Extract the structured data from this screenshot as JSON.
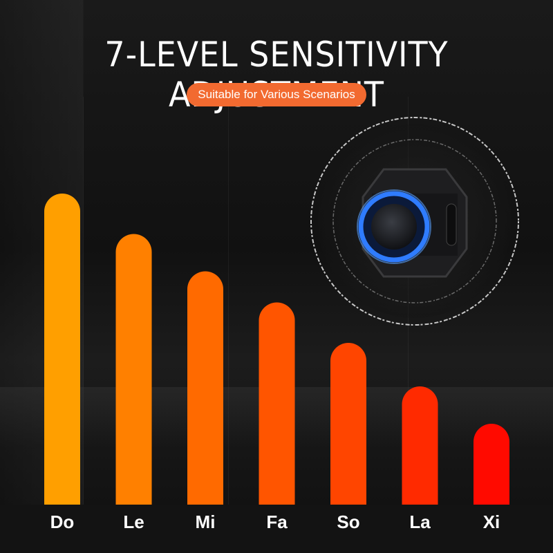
{
  "header": {
    "title": "7-LEVEL SENSITIVITY ADJUSTMENT",
    "subtitle": "Suitable for Various Scenarios"
  },
  "colors": {
    "accent": "#f26a30",
    "bars": [
      "#ff9f00",
      "#ff8000",
      "#ff6a00",
      "#ff5500",
      "#ff4500",
      "#ff2a00",
      "#ff0a00"
    ]
  },
  "device": {
    "icon": "power-button-device-icon"
  },
  "levels": [
    {
      "label": "Do",
      "level": 1.0
    },
    {
      "label": "Le",
      "level": 0.87
    },
    {
      "label": "Mi",
      "level": 0.75
    },
    {
      "label": "Fa",
      "level": 0.65
    },
    {
      "label": "So",
      "level": 0.52
    },
    {
      "label": "La",
      "level": 0.38
    },
    {
      "label": "Xi",
      "level": 0.26
    }
  ]
}
